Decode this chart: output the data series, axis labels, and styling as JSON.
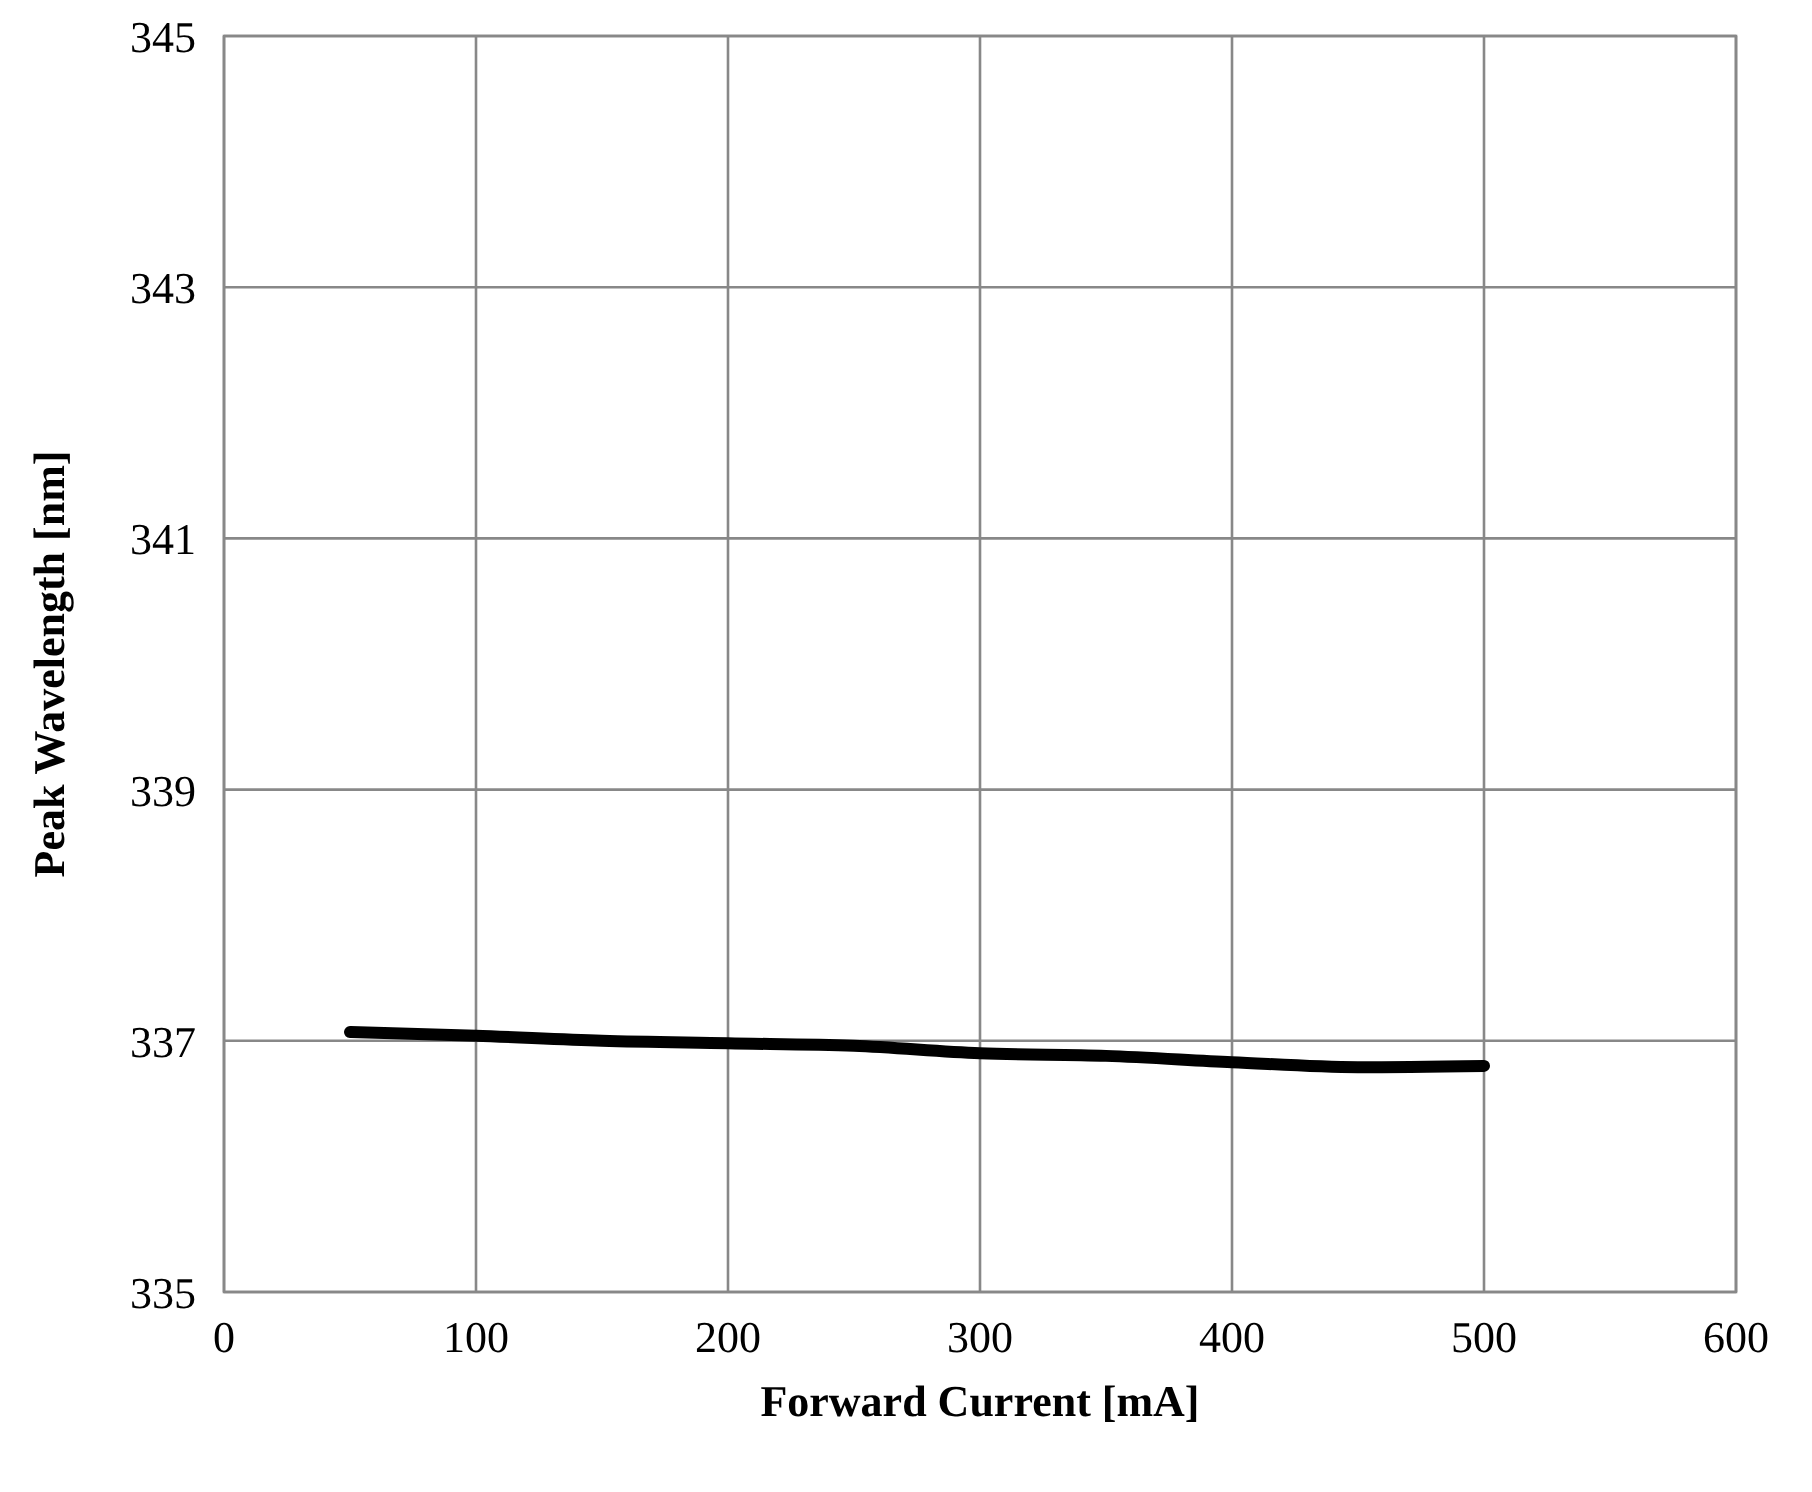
{
  "chart_data": {
    "type": "line",
    "xlabel": "Forward Current [mA]",
    "ylabel": "Peak Wavelength [nm]",
    "xlim": [
      0,
      600
    ],
    "xticks": [
      0,
      100,
      200,
      300,
      400,
      500,
      600
    ],
    "ylim": [
      335,
      345
    ],
    "yticks": [
      335,
      337,
      339,
      341,
      343,
      345
    ],
    "grid": true,
    "series": [
      {
        "color": "#000000",
        "x": [
          50,
          100,
          150,
          200,
          250,
          300,
          350,
          400,
          450,
          500
        ],
        "values": [
          337.07,
          337.04,
          337.0,
          336.98,
          336.96,
          336.9,
          336.88,
          336.83,
          336.79,
          336.8
        ]
      }
    ]
  }
}
